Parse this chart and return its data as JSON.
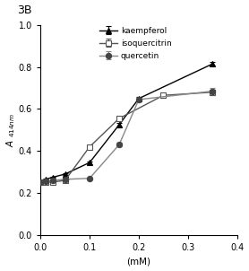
{
  "title": "3B",
  "xlabel": "(mM)",
  "xlim": [
    0,
    0.4
  ],
  "ylim": [
    0.0,
    1.0
  ],
  "xticks": [
    0.0,
    0.1,
    0.2,
    0.3,
    0.4
  ],
  "yticks": [
    0.0,
    0.2,
    0.4,
    0.6,
    0.8,
    1.0
  ],
  "kaempferol": {
    "x": [
      0.0,
      0.01,
      0.025,
      0.05,
      0.1,
      0.16,
      0.2,
      0.35
    ],
    "y": [
      0.255,
      0.265,
      0.275,
      0.29,
      0.345,
      0.525,
      0.65,
      0.815
    ],
    "yerr": [
      0.004,
      0.004,
      0.004,
      0.004,
      0.006,
      0.007,
      0.008,
      0.008
    ],
    "color": "#000000",
    "marker": "^",
    "mfc": "#000000",
    "mec": "#000000",
    "label": "kaempferol"
  },
  "isoquercitrin": {
    "x": [
      0.0,
      0.01,
      0.025,
      0.05,
      0.1,
      0.16,
      0.25,
      0.35
    ],
    "y": [
      0.252,
      0.252,
      0.252,
      0.26,
      0.42,
      0.555,
      0.665,
      0.68
    ],
    "yerr": [
      0.004,
      0.004,
      0.004,
      0.004,
      0.008,
      0.009,
      0.01,
      0.012
    ],
    "color": "#555555",
    "marker": "s",
    "mfc": "#ffffff",
    "mec": "#555555",
    "label": "isoquercitrin"
  },
  "quercetin": {
    "x": [
      0.0,
      0.01,
      0.025,
      0.05,
      0.1,
      0.16,
      0.2,
      0.35
    ],
    "y": [
      0.252,
      0.255,
      0.26,
      0.265,
      0.27,
      0.43,
      0.645,
      0.685
    ],
    "yerr": [
      0.004,
      0.004,
      0.004,
      0.004,
      0.005,
      0.008,
      0.01,
      0.015
    ],
    "color": "#888888",
    "marker": "o",
    "mfc": "#444444",
    "mec": "#444444",
    "label": "quercetin"
  },
  "legend_fontsize": 6.5,
  "axis_fontsize": 7.5,
  "tick_fontsize": 7,
  "title_fontsize": 9,
  "linewidth": 1.0,
  "markersize": 4.5,
  "background_color": "#ffffff"
}
